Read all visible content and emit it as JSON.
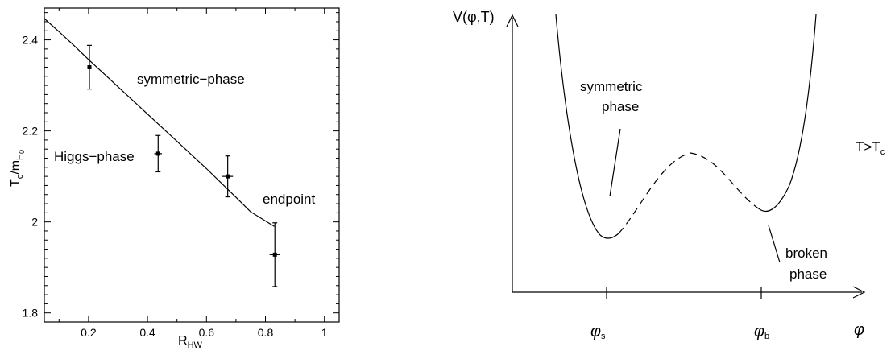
{
  "chart_data": [
    {
      "type": "scatter",
      "xlabel": "R",
      "xlabel_sub": "HW",
      "ylabel": "T",
      "ylabel_sub": "c",
      "ylabel_denom": "m",
      "ylabel_denom_sub": "H",
      "ylabel_denom_subsub": "0",
      "xlim": [
        0.05,
        1.05
      ],
      "ylim": [
        1.78,
        2.47
      ],
      "xticks": [
        0.2,
        0.4,
        0.6,
        0.8,
        1
      ],
      "xtick_labels": [
        "0.2",
        "0.4",
        "0.6",
        "0.8",
        "1"
      ],
      "yticks": [
        1.8,
        2.0,
        2.2,
        2.4
      ],
      "ytick_labels": [
        "1.8",
        "2",
        "2.2",
        "2.4"
      ],
      "points": [
        {
          "x": 0.203,
          "y": 2.34,
          "yerr": 0.048,
          "xerr": 0.007
        },
        {
          "x": 0.436,
          "y": 2.15,
          "yerr": 0.04,
          "xerr": 0.013
        },
        {
          "x": 0.672,
          "y": 2.1,
          "yerr": 0.045,
          "xerr": 0.018
        },
        {
          "x": 0.832,
          "y": 1.928,
          "yerr": 0.07,
          "xerr": 0.018
        }
      ],
      "curve": {
        "x": [
          0.05,
          0.1,
          0.15,
          0.2,
          0.3,
          0.4,
          0.5,
          0.6,
          0.7,
          0.75,
          0.83
        ],
        "y": [
          2.447,
          2.418,
          2.388,
          2.357,
          2.297,
          2.237,
          2.177,
          2.117,
          2.054,
          2.022,
          1.99
        ]
      },
      "annotations": [
        {
          "text": "symmetric−phase"
        },
        {
          "text": "Higgs−phase"
        },
        {
          "text": "endpoint"
        }
      ]
    },
    {
      "type": "line",
      "ylabel": "V(φ,T)",
      "xlabel": "φ",
      "xtick_labels": [
        "φ",
        "φ"
      ],
      "xtick_subs": [
        "s",
        "b"
      ],
      "annotations": [
        {
          "text": "symmetric"
        },
        {
          "text": "phase"
        },
        {
          "text": "broken"
        },
        {
          "text": "phase"
        },
        {
          "text": "T>T"
        },
        {
          "text": "c"
        }
      ]
    }
  ]
}
